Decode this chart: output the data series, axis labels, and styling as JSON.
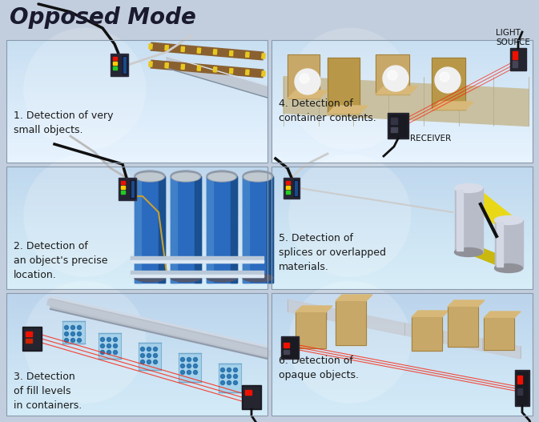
{
  "title": "Opposed Mode",
  "bg_color": "#c2cede",
  "title_color": "#1a1a2e",
  "title_fontsize": 20,
  "panel_border_color": "#8899aa",
  "text_fontsize": 9,
  "annotation_fontsize": 7.5,
  "panel_texts": [
    "1. Detection of very\nsmall objects.",
    "2. Detection of\nan object's precise\nlocation.",
    "3. Detection\nof fill levels\nin containers.",
    "4. Detection of\ncontainer contents.",
    "5. Detection of\nsplices or overlapped\nmaterials.",
    "6. Detection of\nopaque objects."
  ],
  "panel_grad_top": [
    "#c8dff2",
    "#c0d8ee",
    "#bcd4ec",
    "#c8dff2",
    "#c0d8ee",
    "#bcd4ec"
  ],
  "panel_grad_bot": [
    "#e8f4ff",
    "#d8eef8",
    "#d4ecf8",
    "#e8f4ff",
    "#d8eef8",
    "#d4ecf8"
  ],
  "sensor_dark": "#2a2a3a",
  "sensor_green": "#22cc22",
  "sensor_yellow": "#ffcc00",
  "sensor_red": "#ee1100",
  "cable_color": "#111111",
  "beam_red": "#ff2200",
  "cardboard_color": "#c8a868",
  "cardboard_edge": "#a08848",
  "can_color": "#2a6abf",
  "can_top": "#5090d8",
  "rail_color": "#b8c8d4",
  "rail_highlight": "#dce8f0",
  "tape_yellow": "#e8d818",
  "roller_color": "#b8bcc8",
  "roller_highlight": "#d8dce8",
  "container_fill": "#88c0e0",
  "container_dots": "#2070b8"
}
